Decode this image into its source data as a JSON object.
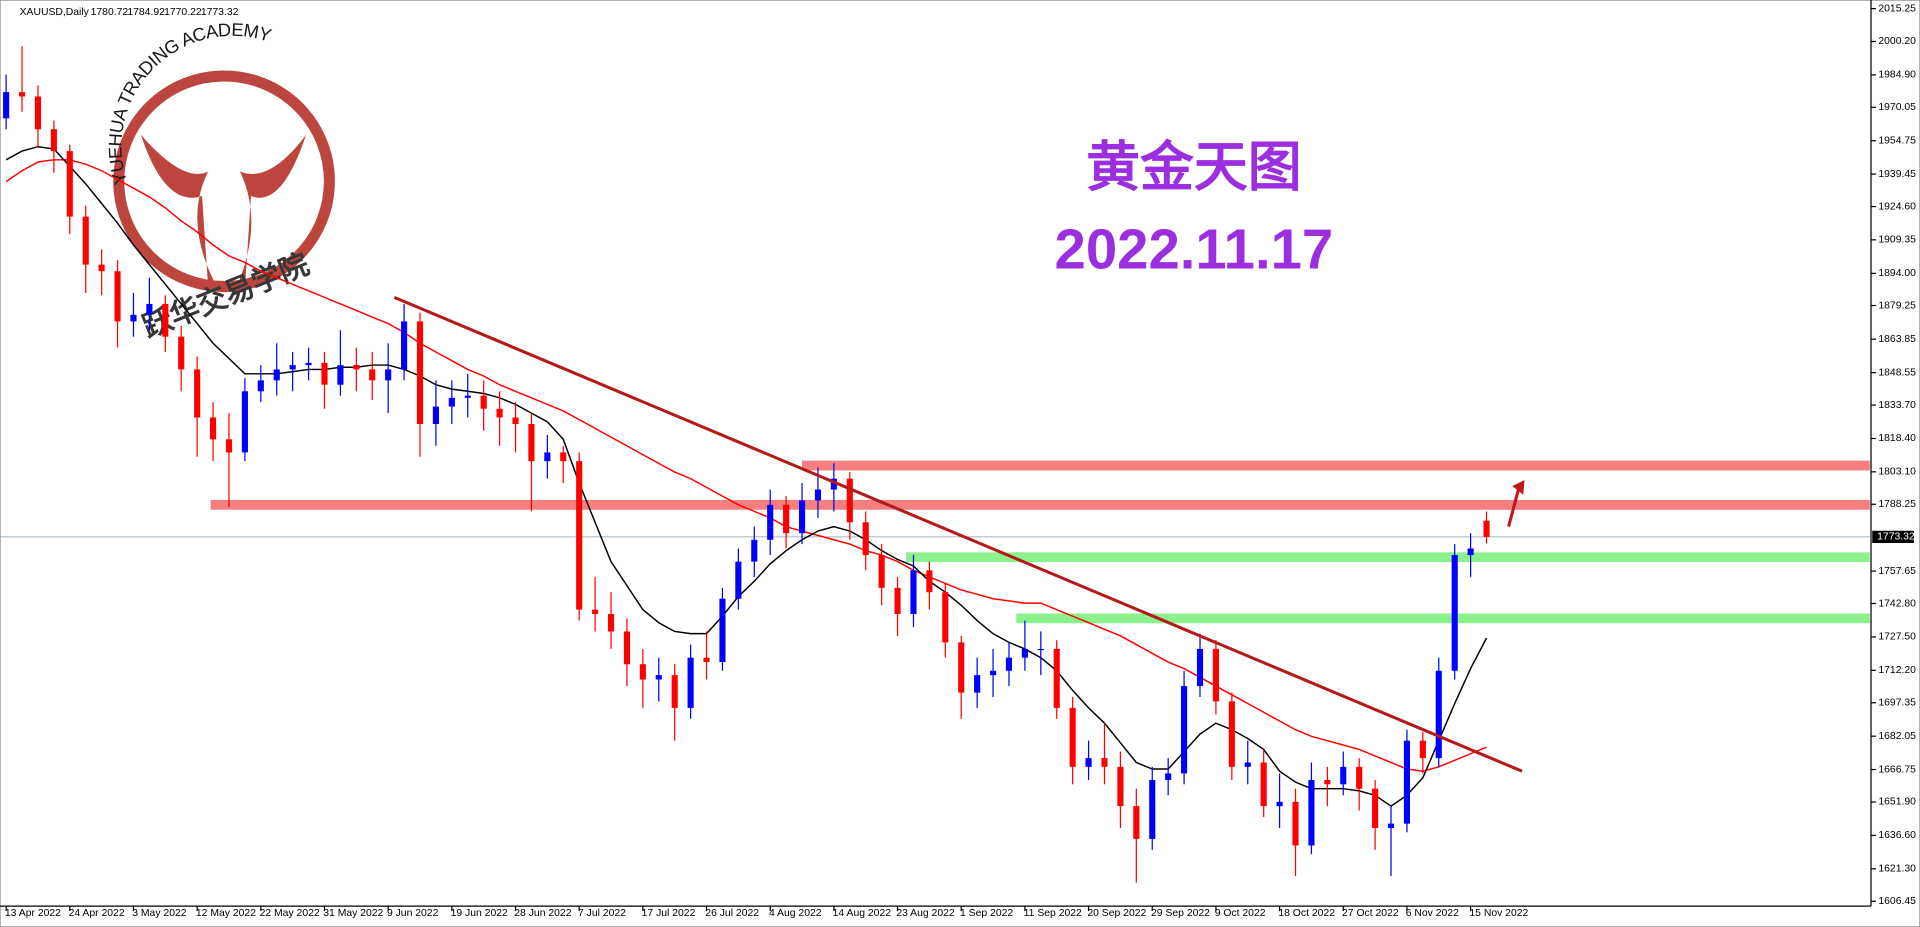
{
  "chart_data": {
    "type": "candlestick",
    "symbol": "XAUUSD,Daily",
    "heading": "黄金天图",
    "date_label": "2022.11.17",
    "logo_text": "YUEHUA TRADING ACADEMY",
    "logo_cn": "跃华交易学院",
    "up_color": "#0000ff",
    "down_color": "#ff0000",
    "categories": [
      "13 Apr 2022",
      null,
      null,
      null,
      "24 Apr 2022",
      null,
      null,
      null,
      "3 May 2022",
      null,
      null,
      null,
      "12 May 2022",
      null,
      null,
      null,
      "22 May 2022",
      null,
      null,
      null,
      "31 May 2022",
      null,
      null,
      null,
      "9 Jun 2022",
      null,
      null,
      null,
      "19 Jun 2022",
      null,
      null,
      null,
      "28 Jun 2022",
      null,
      null,
      null,
      "7 Jul 2022",
      null,
      null,
      null,
      "17 Jul 2022",
      null,
      null,
      null,
      "26 Jul 2022",
      null,
      null,
      null,
      "4 Aug 2022",
      null,
      null,
      null,
      "14 Aug 2022",
      null,
      null,
      null,
      "23 Aug 2022",
      null,
      null,
      null,
      "1 Sep 2022",
      null,
      null,
      null,
      "11 Sep 2022",
      null,
      null,
      null,
      "20 Sep 2022",
      null,
      null,
      null,
      "29 Sep 2022",
      null,
      null,
      null,
      "9 Oct 2022",
      null,
      null,
      null,
      "18 Oct 2022",
      null,
      null,
      null,
      "27 Oct 2022",
      null,
      null,
      null,
      "6 Nov 2022",
      null,
      null,
      null,
      "15 Nov 2022",
      null
    ],
    "open": [
      1965,
      1977,
      1975,
      1960,
      1950,
      1920,
      1898,
      1895,
      1872,
      1875,
      1880,
      1865,
      1850,
      1828,
      1818,
      1812,
      1840,
      1845,
      1850,
      1852,
      1853,
      1843,
      1852,
      1850,
      1845,
      1850,
      1872,
      1825,
      1833,
      1837,
      1838,
      1832,
      1828,
      1825,
      1808,
      1812,
      1808,
      1740,
      1738,
      1730,
      1715,
      1708,
      1710,
      1695,
      1718,
      1716,
      1745,
      1762,
      1772,
      1788,
      1775,
      1790,
      1795,
      1800,
      1780,
      1765,
      1750,
      1738,
      1758,
      1748,
      1725,
      1702,
      1710,
      1712,
      1718,
      1722,
      1722,
      1695,
      1668,
      1672,
      1668,
      1650,
      1635,
      1662,
      1665,
      1705,
      1722,
      1698,
      1668,
      1670,
      1650,
      1652,
      1632,
      1662,
      1660,
      1668,
      1658,
      1640,
      1642,
      1680,
      1672,
      1712,
      1765,
      1780.72
    ],
    "high": [
      1985,
      1998,
      1980,
      1964,
      1953,
      1925,
      1905,
      1900,
      1885,
      1892,
      1884,
      1870,
      1856,
      1835,
      1830,
      1846,
      1852,
      1862,
      1858,
      1860,
      1858,
      1868,
      1860,
      1858,
      1862,
      1880,
      1876,
      1845,
      1845,
      1848,
      1845,
      1840,
      1835,
      1830,
      1820,
      1815,
      1812,
      1755,
      1748,
      1736,
      1722,
      1718,
      1715,
      1724,
      1730,
      1750,
      1768,
      1778,
      1795,
      1792,
      1798,
      1805,
      1807,
      1803,
      1785,
      1770,
      1755,
      1765,
      1762,
      1752,
      1728,
      1718,
      1722,
      1725,
      1735,
      1730,
      1726,
      1700,
      1680,
      1688,
      1675,
      1658,
      1668,
      1672,
      1712,
      1729,
      1726,
      1702,
      1680,
      1676,
      1665,
      1658,
      1670,
      1668,
      1675,
      1672,
      1662,
      1650,
      1685,
      1684,
      1718,
      1770,
      1775,
      1784.92
    ],
    "low": [
      1960,
      1968,
      1952,
      1940,
      1912,
      1885,
      1884,
      1860,
      1865,
      1868,
      1858,
      1840,
      1810,
      1808,
      1787,
      1808,
      1835,
      1838,
      1840,
      1845,
      1832,
      1838,
      1840,
      1836,
      1830,
      1845,
      1810,
      1815,
      1825,
      1828,
      1822,
      1815,
      1812,
      1785,
      1800,
      1798,
      1735,
      1730,
      1722,
      1705,
      1695,
      1698,
      1680,
      1690,
      1708,
      1712,
      1740,
      1755,
      1765,
      1768,
      1770,
      1782,
      1785,
      1772,
      1758,
      1742,
      1728,
      1732,
      1740,
      1718,
      1690,
      1695,
      1700,
      1705,
      1712,
      1710,
      1690,
      1660,
      1662,
      1660,
      1640,
      1615,
      1630,
      1655,
      1660,
      1700,
      1692,
      1662,
      1660,
      1645,
      1640,
      1618,
      1628,
      1650,
      1655,
      1648,
      1630,
      1618,
      1638,
      1665,
      1668,
      1708,
      1755,
      1770.22
    ],
    "close": [
      1977,
      1975,
      1960,
      1950,
      1920,
      1898,
      1895,
      1872,
      1875,
      1880,
      1865,
      1850,
      1828,
      1818,
      1812,
      1840,
      1845,
      1850,
      1852,
      1853,
      1843,
      1852,
      1850,
      1845,
      1850,
      1872,
      1825,
      1833,
      1837,
      1838,
      1832,
      1828,
      1825,
      1808,
      1812,
      1808,
      1740,
      1738,
      1730,
      1715,
      1708,
      1710,
      1695,
      1718,
      1716,
      1745,
      1762,
      1772,
      1788,
      1775,
      1790,
      1795,
      1800,
      1780,
      1765,
      1750,
      1738,
      1758,
      1748,
      1725,
      1702,
      1710,
      1712,
      1718,
      1722,
      1722,
      1695,
      1668,
      1672,
      1668,
      1650,
      1635,
      1662,
      1665,
      1705,
      1722,
      1698,
      1668,
      1670,
      1650,
      1652,
      1632,
      1662,
      1660,
      1668,
      1658,
      1640,
      1642,
      1680,
      1672,
      1712,
      1765,
      1768,
      1773.32
    ],
    "ma_fast": {
      "color": "#000000",
      "values": [
        1946,
        1950,
        1952,
        1951,
        1943,
        1935,
        1926,
        1917,
        1907,
        1898,
        1889,
        1880,
        1871,
        1862,
        1855,
        1848,
        1848,
        1848,
        1849,
        1850,
        1850,
        1851,
        1851,
        1852,
        1852,
        1850,
        1847,
        1843,
        1841,
        1840,
        1839,
        1837,
        1834,
        1830,
        1826,
        1818,
        1798,
        1780,
        1762,
        1751,
        1740,
        1734,
        1730,
        1729,
        1729,
        1737,
        1746,
        1753,
        1761,
        1767,
        1772,
        1776,
        1778,
        1776,
        1772,
        1767,
        1763,
        1760,
        1753,
        1748,
        1742,
        1735,
        1729,
        1725,
        1722,
        1718,
        1712,
        1703,
        1695,
        1688,
        1679,
        1670,
        1667,
        1667,
        1675,
        1683,
        1688,
        1685,
        1681,
        1676,
        1666,
        1661,
        1658,
        1658,
        1658,
        1657,
        1655,
        1650,
        1655,
        1663,
        1680,
        1697,
        1713,
        1727
      ]
    },
    "ma_slow": {
      "color": "#ff0000",
      "values": [
        1936,
        1941,
        1945,
        1946,
        1946,
        1944,
        1941,
        1937,
        1933,
        1929,
        1924,
        1918,
        1913,
        1907,
        1902,
        1899,
        1895,
        1892,
        1889,
        1886,
        1883,
        1880,
        1877,
        1874,
        1871,
        1867,
        1862,
        1858,
        1854,
        1850,
        1847,
        1843,
        1840,
        1837,
        1834,
        1831,
        1827,
        1823,
        1819,
        1815,
        1811,
        1807,
        1803,
        1800,
        1796,
        1792,
        1788,
        1785,
        1782,
        1778,
        1776,
        1774,
        1772,
        1770,
        1767,
        1765,
        1762,
        1758,
        1755,
        1752,
        1749,
        1747,
        1745,
        1744,
        1743,
        1743,
        1740,
        1737,
        1734,
        1731,
        1728,
        1724,
        1720,
        1716,
        1713,
        1709,
        1705,
        1701,
        1697,
        1693,
        1689,
        1685,
        1682,
        1680,
        1678,
        1676,
        1673,
        1670,
        1667,
        1666,
        1668,
        1671,
        1674,
        1677
      ]
    },
    "zones": [
      {
        "value": 1788,
        "color": "#f47f7f"
      },
      {
        "value": 1806,
        "color": "#f47f7f"
      },
      {
        "value": 1764,
        "color": "#8cf08c"
      },
      {
        "value": 1736,
        "color": "#8cf08c"
      }
    ],
    "trendline": {
      "color": "#b31b1b",
      "values": [
        1883,
        1666
      ]
    },
    "ylim": [
      1606.45,
      2015.25
    ],
    "yticks": [
      {
        "value": 2015.25,
        "label": "2015.25"
      },
      {
        "value": 2000.2,
        "label": "2000.20"
      },
      {
        "value": 1984.9,
        "label": "1984.90"
      },
      {
        "value": 1970.05,
        "label": "1970.05"
      },
      {
        "value": 1954.75,
        "label": "1954.75"
      },
      {
        "value": 1939.45,
        "label": "1939.45"
      },
      {
        "value": 1924.6,
        "label": "1924.60"
      },
      {
        "value": 1909.35,
        "label": "1909.35"
      },
      {
        "value": 1894,
        "label": "1894.00"
      },
      {
        "value": 1879.25,
        "label": "1879.25"
      },
      {
        "value": 1863.85,
        "label": "1863.85"
      },
      {
        "value": 1848.55,
        "label": "1848.55"
      },
      {
        "value": 1833.7,
        "label": "1833.70"
      },
      {
        "value": 1818.4,
        "label": "1818.40"
      },
      {
        "value": 1803.1,
        "label": "1803.10"
      },
      {
        "value": 1788.25,
        "label": "1788.25"
      },
      {
        "value": 1757.65,
        "label": "1757.65"
      },
      {
        "value": 1742.8,
        "label": "1742.80"
      },
      {
        "value": 1727.5,
        "label": "1727.50"
      },
      {
        "value": 1712.2,
        "label": "1712.20"
      },
      {
        "value": 1697.35,
        "label": "1697.35"
      },
      {
        "value": 1682.05,
        "label": "1682.05"
      },
      {
        "value": 1666.75,
        "label": "1666.75"
      },
      {
        "value": 1651.9,
        "label": "1651.90"
      },
      {
        "value": 1636.6,
        "label": "1636.60"
      },
      {
        "value": 1621.3,
        "label": "1621.30"
      },
      {
        "value": 1606.45,
        "label": "1606.45"
      }
    ]
  }
}
